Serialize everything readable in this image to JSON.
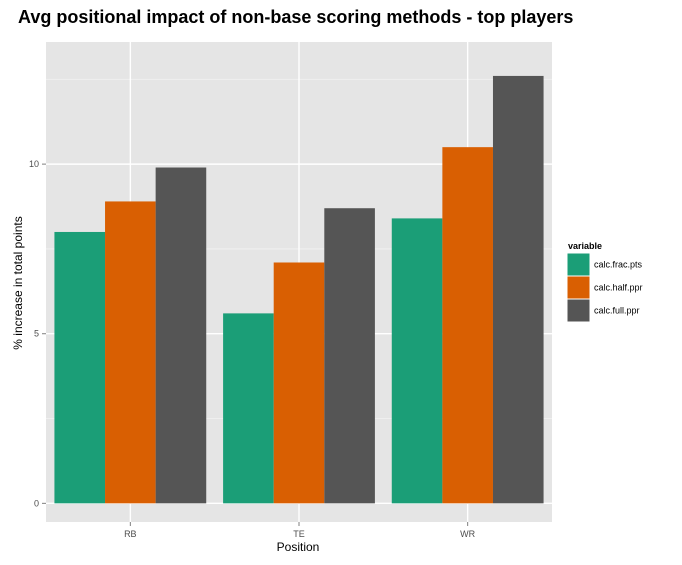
{
  "chart_data": {
    "type": "bar",
    "title": "Avg positional impact of non-base scoring methods - top players",
    "xlabel": "Position",
    "ylabel": "% increase in total points",
    "categories": [
      "RB",
      "TE",
      "WR"
    ],
    "series": [
      {
        "name": "calc.frac.pts",
        "color": "#1b9e77",
        "values": [
          8.0,
          5.6,
          8.4
        ]
      },
      {
        "name": "calc.half.ppr",
        "color": "#d95f02",
        "values": [
          8.9,
          7.1,
          10.5
        ]
      },
      {
        "name": "calc.full.ppr",
        "color": "#555555",
        "values": [
          9.9,
          8.7,
          12.6
        ]
      }
    ],
    "ylim": [
      -0.55,
      13.6
    ],
    "yticks": [
      0,
      5,
      10
    ],
    "grid": true,
    "legend": {
      "title": "variable",
      "position": "right"
    },
    "colors": {
      "panel": "#e5e5e5",
      "grid_major": "#ffffff",
      "grid_minor": "#f2f2f2"
    }
  }
}
